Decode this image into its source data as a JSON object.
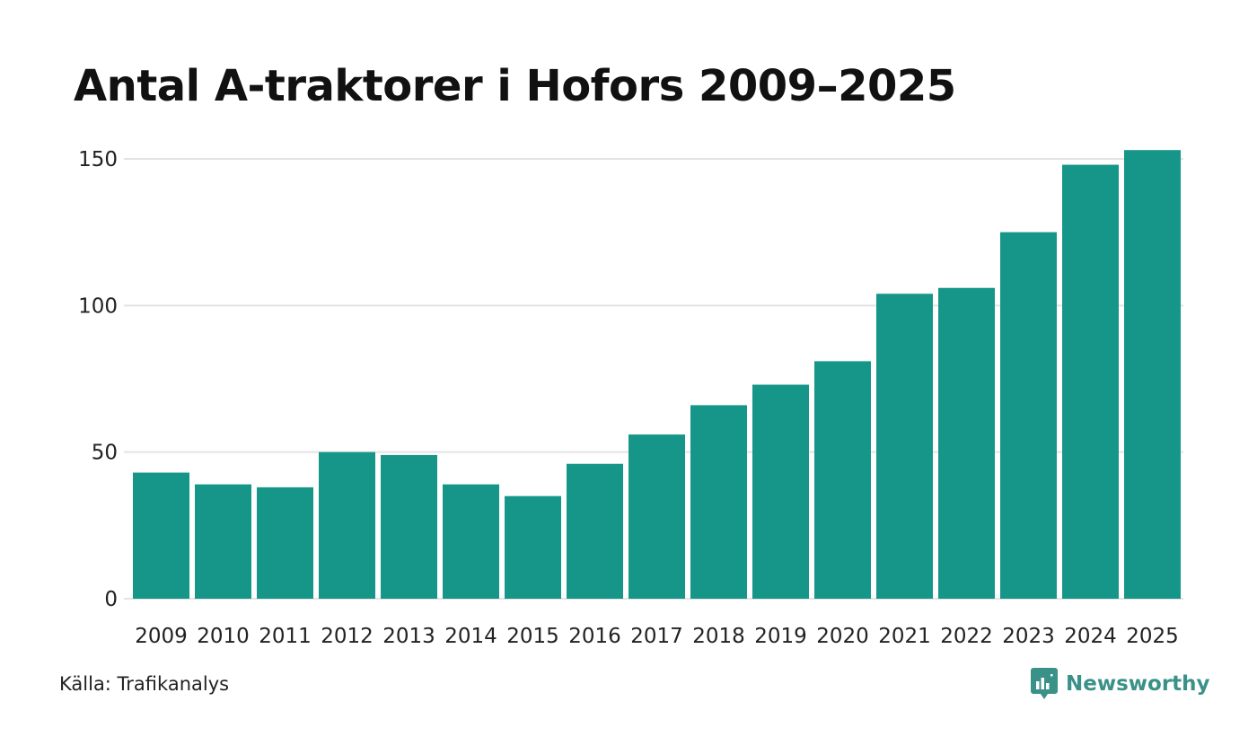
{
  "title": "Antal A-traktorer i Hofors 2009–2025",
  "source": "Källa: Trafikanalys",
  "brand": {
    "name": "Newsworthy",
    "icon": "newsworthy-logo-icon",
    "color": "#3a9188"
  },
  "colors": {
    "bar": "#159688",
    "grid": "#e3e3e3",
    "text": "#222222"
  },
  "chart_data": {
    "type": "bar",
    "title": "Antal A-traktorer i Hofors 2009–2025",
    "xlabel": "",
    "ylabel": "",
    "categories": [
      "2009",
      "2010",
      "2011",
      "2012",
      "2013",
      "2014",
      "2015",
      "2016",
      "2017",
      "2018",
      "2019",
      "2020",
      "2021",
      "2022",
      "2023",
      "2024",
      "2025"
    ],
    "values": [
      43,
      39,
      38,
      50,
      49,
      39,
      35,
      46,
      56,
      66,
      73,
      81,
      104,
      106,
      125,
      148,
      153
    ],
    "ylim": [
      0,
      150
    ],
    "yticks": [
      0,
      50,
      100,
      150
    ],
    "grid": true,
    "legend": "none"
  }
}
